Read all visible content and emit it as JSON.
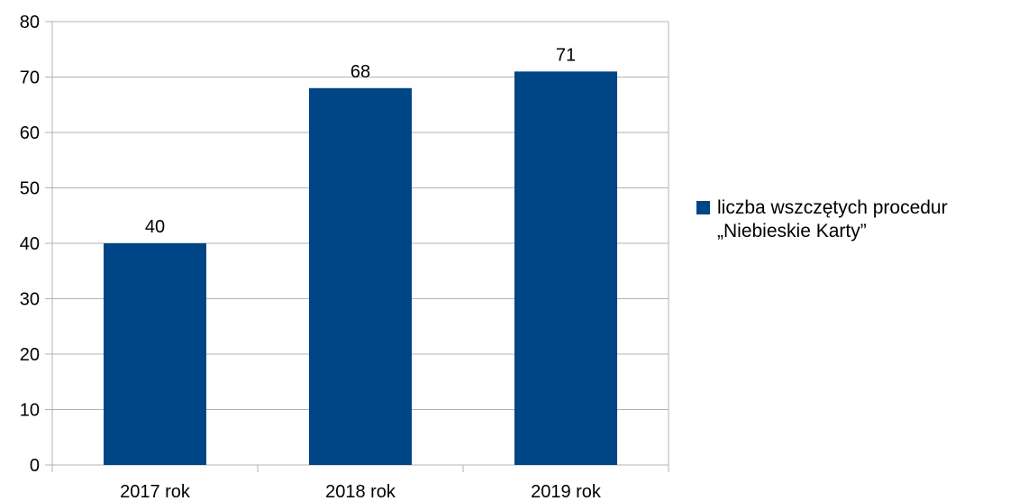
{
  "chart_data": {
    "type": "bar",
    "categories": [
      "2017 rok",
      "2018 rok",
      "2019 rok"
    ],
    "series": [
      {
        "name": "liczba wszczętych procedur „Niebieskie Karty”",
        "name_lines": [
          "liczba wszczętych procedur",
          "„Niebieskie Karty”"
        ],
        "values": [
          40,
          68,
          71
        ],
        "color": "#004586"
      }
    ],
    "data_labels": [
      "40",
      "68",
      "71"
    ],
    "y_ticks": [
      "0",
      "10",
      "20",
      "30",
      "40",
      "50",
      "60",
      "70",
      "80"
    ],
    "ylim": [
      0,
      80
    ],
    "grid": true,
    "legend": "right",
    "title": "",
    "xlabel": "",
    "ylabel": ""
  }
}
